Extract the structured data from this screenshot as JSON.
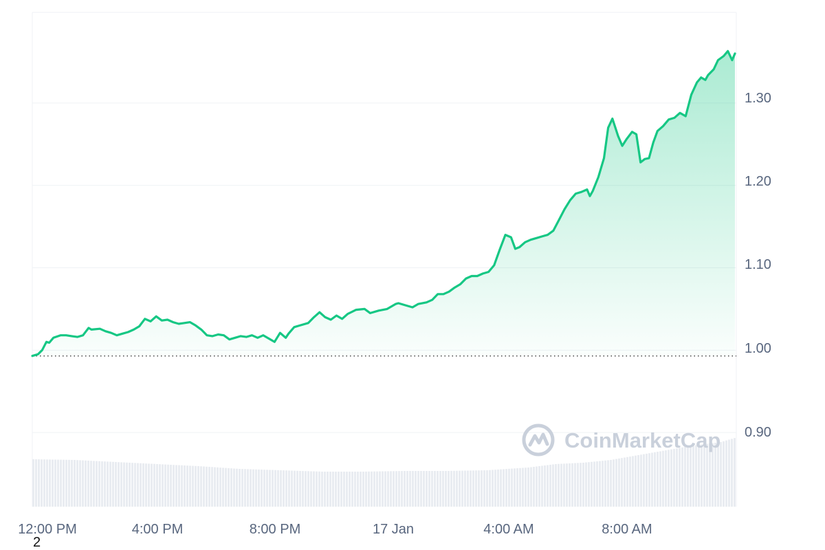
{
  "watermark": {
    "text": "CoinMarketCap"
  },
  "corner_label": "2",
  "colors": {
    "line": "#16c784",
    "area_top": "#16c784",
    "grid": "#eff2f5",
    "reference_line": "#444444",
    "volume": "#e9ecf1",
    "axis_text": "#58667e",
    "watermark": "#c9d0db"
  },
  "chart_data": {
    "type": "line",
    "x_ticks": [
      "12:00 PM",
      "4:00 PM",
      "8:00 PM",
      "17 Jan",
      "4:00 AM",
      "8:00 AM"
    ],
    "y_ticks": [
      "0.90",
      "1.00",
      "1.10",
      "1.20",
      "1.30"
    ],
    "ylim": [
      0.81,
      1.41
    ],
    "reference_value": 0.993,
    "grid": true,
    "y_axis_position": "right",
    "series": [
      {
        "values": [
          [
            0,
            0.993
          ],
          [
            0.2,
            0.995
          ],
          [
            0.35,
            1.0
          ],
          [
            0.5,
            1.01
          ],
          [
            0.6,
            1.009
          ],
          [
            0.75,
            1.015
          ],
          [
            1.0,
            1.018
          ],
          [
            1.2,
            1.018
          ],
          [
            1.4,
            1.017
          ],
          [
            1.6,
            1.016
          ],
          [
            1.8,
            1.018
          ],
          [
            2.0,
            1.027
          ],
          [
            2.1,
            1.025
          ],
          [
            2.4,
            1.026
          ],
          [
            2.6,
            1.023
          ],
          [
            2.8,
            1.021
          ],
          [
            3.0,
            1.018
          ],
          [
            3.2,
            1.02
          ],
          [
            3.4,
            1.022
          ],
          [
            3.6,
            1.025
          ],
          [
            3.8,
            1.029
          ],
          [
            4.0,
            1.038
          ],
          [
            4.2,
            1.035
          ],
          [
            4.4,
            1.041
          ],
          [
            4.6,
            1.036
          ],
          [
            4.8,
            1.037
          ],
          [
            5.0,
            1.034
          ],
          [
            5.2,
            1.032
          ],
          [
            5.4,
            1.033
          ],
          [
            5.6,
            1.034
          ],
          [
            5.8,
            1.03
          ],
          [
            6.0,
            1.025
          ],
          [
            6.2,
            1.018
          ],
          [
            6.4,
            1.017
          ],
          [
            6.6,
            1.019
          ],
          [
            6.8,
            1.018
          ],
          [
            7.0,
            1.013
          ],
          [
            7.2,
            1.015
          ],
          [
            7.4,
            1.017
          ],
          [
            7.6,
            1.016
          ],
          [
            7.8,
            1.018
          ],
          [
            8.0,
            1.015
          ],
          [
            8.2,
            1.018
          ],
          [
            8.5,
            1.012
          ],
          [
            8.6,
            1.01
          ],
          [
            8.8,
            1.021
          ],
          [
            9.0,
            1.015
          ],
          [
            9.1,
            1.02
          ],
          [
            9.3,
            1.028
          ],
          [
            9.5,
            1.03
          ],
          [
            9.8,
            1.033
          ],
          [
            10.0,
            1.04
          ],
          [
            10.2,
            1.046
          ],
          [
            10.4,
            1.04
          ],
          [
            10.6,
            1.037
          ],
          [
            10.8,
            1.042
          ],
          [
            11.0,
            1.038
          ],
          [
            11.2,
            1.044
          ],
          [
            11.5,
            1.049
          ],
          [
            11.8,
            1.05
          ],
          [
            12.0,
            1.045
          ],
          [
            12.3,
            1.048
          ],
          [
            12.6,
            1.05
          ],
          [
            12.9,
            1.056
          ],
          [
            13.0,
            1.057
          ],
          [
            13.3,
            1.054
          ],
          [
            13.5,
            1.052
          ],
          [
            13.7,
            1.056
          ],
          [
            14.0,
            1.058
          ],
          [
            14.2,
            1.061
          ],
          [
            14.4,
            1.068
          ],
          [
            14.6,
            1.068
          ],
          [
            14.8,
            1.071
          ],
          [
            15.0,
            1.076
          ],
          [
            15.2,
            1.08
          ],
          [
            15.4,
            1.087
          ],
          [
            15.6,
            1.09
          ],
          [
            15.8,
            1.09
          ],
          [
            16.0,
            1.093
          ],
          [
            16.2,
            1.095
          ],
          [
            16.4,
            1.103
          ],
          [
            16.6,
            1.122
          ],
          [
            16.8,
            1.14
          ],
          [
            17.0,
            1.137
          ],
          [
            17.15,
            1.123
          ],
          [
            17.3,
            1.125
          ],
          [
            17.5,
            1.131
          ],
          [
            17.7,
            1.134
          ],
          [
            17.9,
            1.136
          ],
          [
            18.1,
            1.138
          ],
          [
            18.3,
            1.14
          ],
          [
            18.5,
            1.145
          ],
          [
            18.7,
            1.158
          ],
          [
            18.9,
            1.171
          ],
          [
            19.1,
            1.182
          ],
          [
            19.3,
            1.19
          ],
          [
            19.5,
            1.192
          ],
          [
            19.7,
            1.195
          ],
          [
            19.8,
            1.187
          ],
          [
            19.9,
            1.193
          ],
          [
            20.1,
            1.21
          ],
          [
            20.3,
            1.233
          ],
          [
            20.45,
            1.27
          ],
          [
            20.6,
            1.281
          ],
          [
            20.8,
            1.26
          ],
          [
            20.95,
            1.248
          ],
          [
            21.1,
            1.256
          ],
          [
            21.3,
            1.265
          ],
          [
            21.45,
            1.262
          ],
          [
            21.6,
            1.228
          ],
          [
            21.75,
            1.232
          ],
          [
            21.9,
            1.233
          ],
          [
            22.05,
            1.252
          ],
          [
            22.2,
            1.266
          ],
          [
            22.4,
            1.272
          ],
          [
            22.6,
            1.28
          ],
          [
            22.8,
            1.282
          ],
          [
            23.0,
            1.288
          ],
          [
            23.2,
            1.284
          ],
          [
            23.4,
            1.31
          ],
          [
            23.6,
            1.325
          ],
          [
            23.75,
            1.331
          ],
          [
            23.9,
            1.328
          ],
          [
            24.0,
            1.334
          ],
          [
            24.2,
            1.341
          ],
          [
            24.35,
            1.352
          ],
          [
            24.55,
            1.357
          ],
          [
            24.7,
            1.363
          ],
          [
            24.85,
            1.352
          ],
          [
            24.95,
            1.36
          ]
        ]
      }
    ]
  }
}
